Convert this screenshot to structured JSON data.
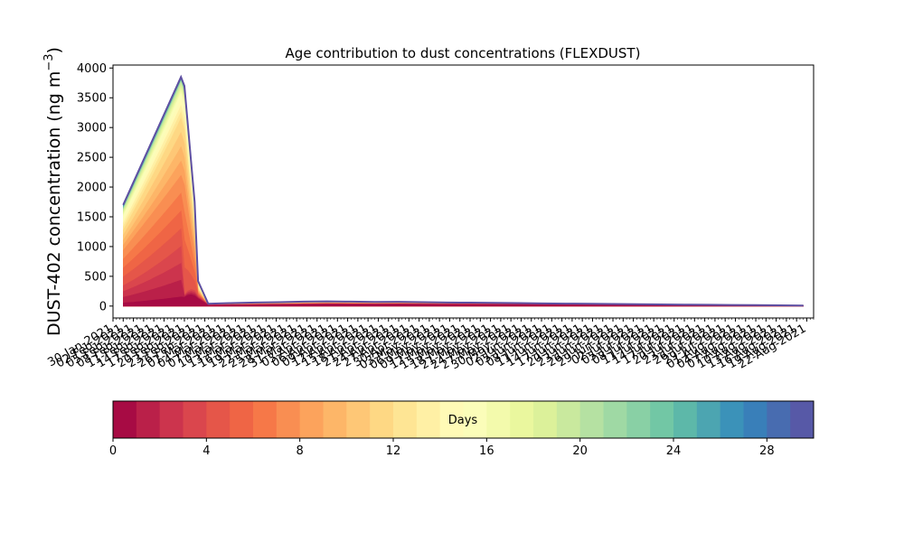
{
  "chart_data": {
    "type": "area",
    "title": "Age contribution to dust concentrations (FLEXDUST)",
    "ylabel_base": "DUST-402 concentration (ng m",
    "ylabel_sup": "−3",
    "ylabel_close": ")",
    "xlabel": "",
    "ylim": [
      -200,
      4050
    ],
    "xlim": [
      "2021-01-30",
      "2021-08-24"
    ],
    "yticks": [
      0,
      500,
      1000,
      1500,
      2000,
      2500,
      3000,
      3500,
      4000
    ],
    "xtick_labels": [
      "30-Jan-2021",
      "02-Feb-2021",
      "05-Feb-2021",
      "08-Feb-2021",
      "11-Feb-2021",
      "14-Feb-2021",
      "17-Feb-2021",
      "20-Feb-2021",
      "23-Feb-2021",
      "26-Feb-2021",
      "01-Mar-2021",
      "04-Mar-2021",
      "07-Mar-2021",
      "10-Mar-2021",
      "13-Mar-2021",
      "16-Mar-2021",
      "19-Mar-2021",
      "22-Mar-2021",
      "25-Mar-2021",
      "28-Mar-2021",
      "31-Mar-2021",
      "03-Apr-2021",
      "06-Apr-2021",
      "09-Apr-2021",
      "12-Apr-2021",
      "15-Apr-2021",
      "18-Apr-2021",
      "21-Apr-2021",
      "24-Apr-2021",
      "27-Apr-2021",
      "30-Apr-2021",
      "03-May-2021",
      "06-May-2021",
      "09-May-2021",
      "12-May-2021",
      "15-May-2021",
      "18-May-2021",
      "21-May-2021",
      "24-May-2021",
      "27-May-2021",
      "30-May-2021",
      "02-Jun-2021",
      "05-Jun-2021",
      "08-Jun-2021",
      "11-Jun-2021",
      "14-Jun-2021",
      "17-Jun-2021",
      "20-Jun-2021",
      "23-Jun-2021",
      "26-Jun-2021",
      "29-Jun-2021",
      "02-Jul-2021",
      "05-Jul-2021",
      "08-Jul-2021",
      "11-Jul-2021",
      "14-Jul-2021",
      "17-Jul-2021",
      "20-Jul-2021",
      "23-Jul-2021",
      "26-Jul-2021",
      "29-Jul-2021",
      "01-Aug-2021",
      "04-Aug-2021",
      "07-Aug-2021",
      "10-Aug-2021",
      "13-Aug-2021",
      "16-Aug-2021",
      "19-Aug-2021",
      "22-Aug-2021"
    ],
    "total": {
      "x": [
        "2021-02-02",
        "2021-02-19",
        "2021-02-20",
        "2021-02-23",
        "2021-02-24",
        "2021-02-27",
        "2021-03-06",
        "2021-03-13",
        "2021-03-20",
        "2021-03-27",
        "2021-04-03",
        "2021-04-10",
        "2021-04-17",
        "2021-04-24",
        "2021-05-01",
        "2021-05-08",
        "2021-05-15",
        "2021-05-22",
        "2021-05-29",
        "2021-06-05",
        "2021-06-12",
        "2021-06-19",
        "2021-06-26",
        "2021-07-03",
        "2021-07-10",
        "2021-07-17",
        "2021-07-24",
        "2021-07-31",
        "2021-08-07",
        "2021-08-14",
        "2021-08-21"
      ],
      "y": [
        1700,
        3850,
        3700,
        1750,
        420,
        40,
        50,
        60,
        65,
        75,
        80,
        75,
        70,
        72,
        65,
        60,
        58,
        55,
        50,
        45,
        42,
        38,
        35,
        30,
        28,
        25,
        22,
        18,
        15,
        12,
        10
      ]
    },
    "fractions": {
      "x": [
        "2021-02-02",
        "2021-02-19",
        "2021-02-20",
        "2021-02-23",
        "2021-02-24",
        "2021-02-27",
        "2021-04-01",
        "2021-05-01",
        "2021-06-01",
        "2021-07-01",
        "2021-08-01",
        "2021-08-21"
      ],
      "at_day": [
        1,
        4,
        8,
        12,
        16,
        20,
        29
      ],
      "values": [
        [
          0.03,
          0.04,
          0.04,
          0.1,
          0.3,
          0.35,
          0.4,
          0.45,
          0.5,
          0.5,
          0.5,
          0.5
        ],
        [
          0.2,
          0.26,
          0.05,
          0.15,
          0.4,
          0.45,
          0.5,
          0.55,
          0.6,
          0.6,
          0.6,
          0.6
        ],
        [
          0.55,
          0.57,
          0.55,
          0.5,
          0.55,
          0.55,
          0.6,
          0.65,
          0.7,
          0.7,
          0.7,
          0.7
        ],
        [
          0.75,
          0.82,
          0.8,
          0.75,
          0.7,
          0.7,
          0.72,
          0.75,
          0.78,
          0.8,
          0.8,
          0.8
        ],
        [
          0.89,
          0.93,
          0.92,
          0.9,
          0.85,
          0.85,
          0.85,
          0.85,
          0.88,
          0.88,
          0.88,
          0.88
        ],
        [
          0.95,
          0.975,
          0.97,
          0.96,
          0.93,
          0.93,
          0.93,
          0.93,
          0.94,
          0.94,
          0.94,
          0.94
        ],
        [
          1.0,
          1.0,
          1.0,
          1.0,
          1.0,
          1.0,
          1.0,
          1.0,
          1.0,
          1.0,
          1.0,
          1.0
        ]
      ]
    },
    "colorbar": {
      "label": "Days",
      "range": [
        0,
        30
      ],
      "n_levels": 30,
      "ticks": [
        "0",
        "4",
        "8",
        "12",
        "16",
        "20",
        "24",
        "28"
      ],
      "colormap": "Spectral",
      "colors": [
        "#9e0142",
        "#d53e4f",
        "#f46d43",
        "#fdae61",
        "#fee08b",
        "#ffffbf",
        "#e6f598",
        "#abdda4",
        "#66c2a5",
        "#3288bd",
        "#5e4fa2"
      ]
    }
  }
}
